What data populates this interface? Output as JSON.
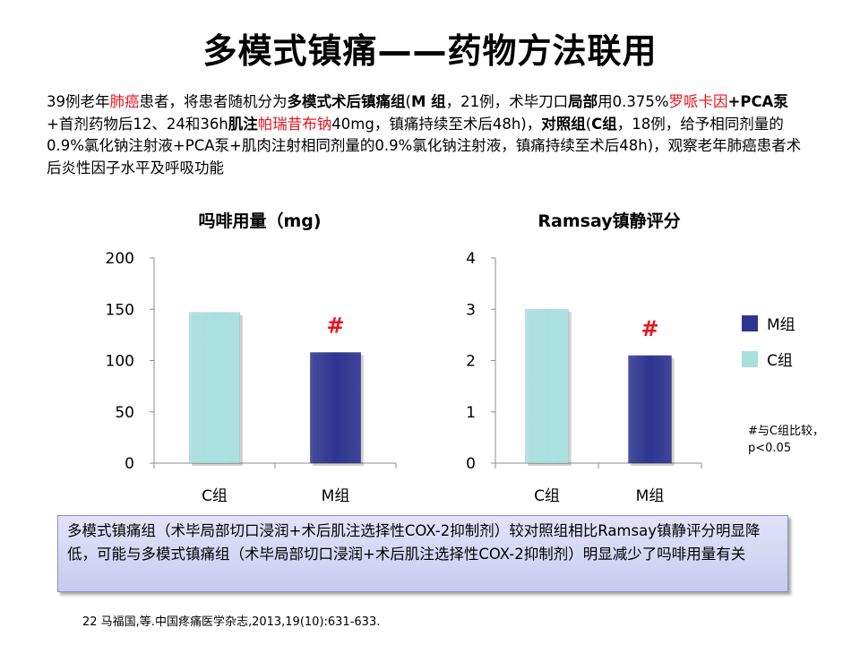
{
  "title": "多模式镇痛——药物方法联用",
  "intro": [
    {
      "t": "39例老年"
    },
    {
      "t": "肺癌",
      "s": "r"
    },
    {
      "t": "患者，将患者随机分为"
    },
    {
      "t": "多模式术后镇痛组",
      "s": "b"
    },
    {
      "t": "("
    },
    {
      "t": "M 组",
      "s": "b"
    },
    {
      "t": "，21例，术毕刀口"
    },
    {
      "t": "局部",
      "s": "b"
    },
    {
      "t": "用0.375%"
    },
    {
      "t": "罗哌卡因",
      "s": "r"
    },
    {
      "t": "+PCA泵",
      "s": "b"
    },
    {
      "t": "+首剂药物后12、24和36h"
    },
    {
      "t": "肌注",
      "s": "b"
    },
    {
      "t": "帕瑞昔布钠",
      "s": "r"
    },
    {
      "t": "40mg，镇痛持续至术后48h)，"
    },
    {
      "t": "对照组",
      "s": "b"
    },
    {
      "t": "("
    },
    {
      "t": "C组",
      "s": "b"
    },
    {
      "t": "，18例，给予相同剂量的0.9%氯化钠注射液+PCA泵+肌肉注射相同剂量的0.9%氯化钠注射液，镇痛持续至术后48h)，观察老年肺癌患者术后炎性因子水平及呼吸功能"
    }
  ],
  "colors": {
    "C组": "#a8e0e0",
    "M组": "#2e3591",
    "marker": "#e8141e",
    "red_text": "#e8141e"
  },
  "chart_data": [
    {
      "type": "bar",
      "title": "吗啡用量（mg)",
      "categories": [
        "C组",
        "M组"
      ],
      "values": [
        147,
        108
      ],
      "markers": [
        "",
        "#"
      ],
      "ylim": [
        0,
        200
      ],
      "yticks": [
        0,
        50,
        100,
        150,
        200
      ],
      "grid": false
    },
    {
      "type": "bar",
      "title": "Ramsay镇静评分",
      "categories": [
        "C组",
        "M组"
      ],
      "values": [
        3.0,
        2.1
      ],
      "markers": [
        "",
        "#"
      ],
      "ylim": [
        0,
        4
      ],
      "yticks": [
        0,
        1,
        2,
        3,
        4
      ],
      "grid": false
    }
  ],
  "legend": [
    {
      "label": "M组",
      "color": "#2e3591"
    },
    {
      "label": "C组",
      "color": "#a8e0e0"
    }
  ],
  "note": "#与C组比较，p<0.05",
  "conclusion": "多模式镇痛组（术毕局部切口浸润+术后肌注选择性COX-2抑制剂）较对照组相比Ramsay镇静评分明显降低，可能与多模式镇痛组（术毕局部切口浸润+术后肌注选择性COX-2抑制剂）明显减少了吗啡用量有关",
  "reference": "22 马福国,等.中国疼痛医学杂志,2013,19(10):631-633."
}
